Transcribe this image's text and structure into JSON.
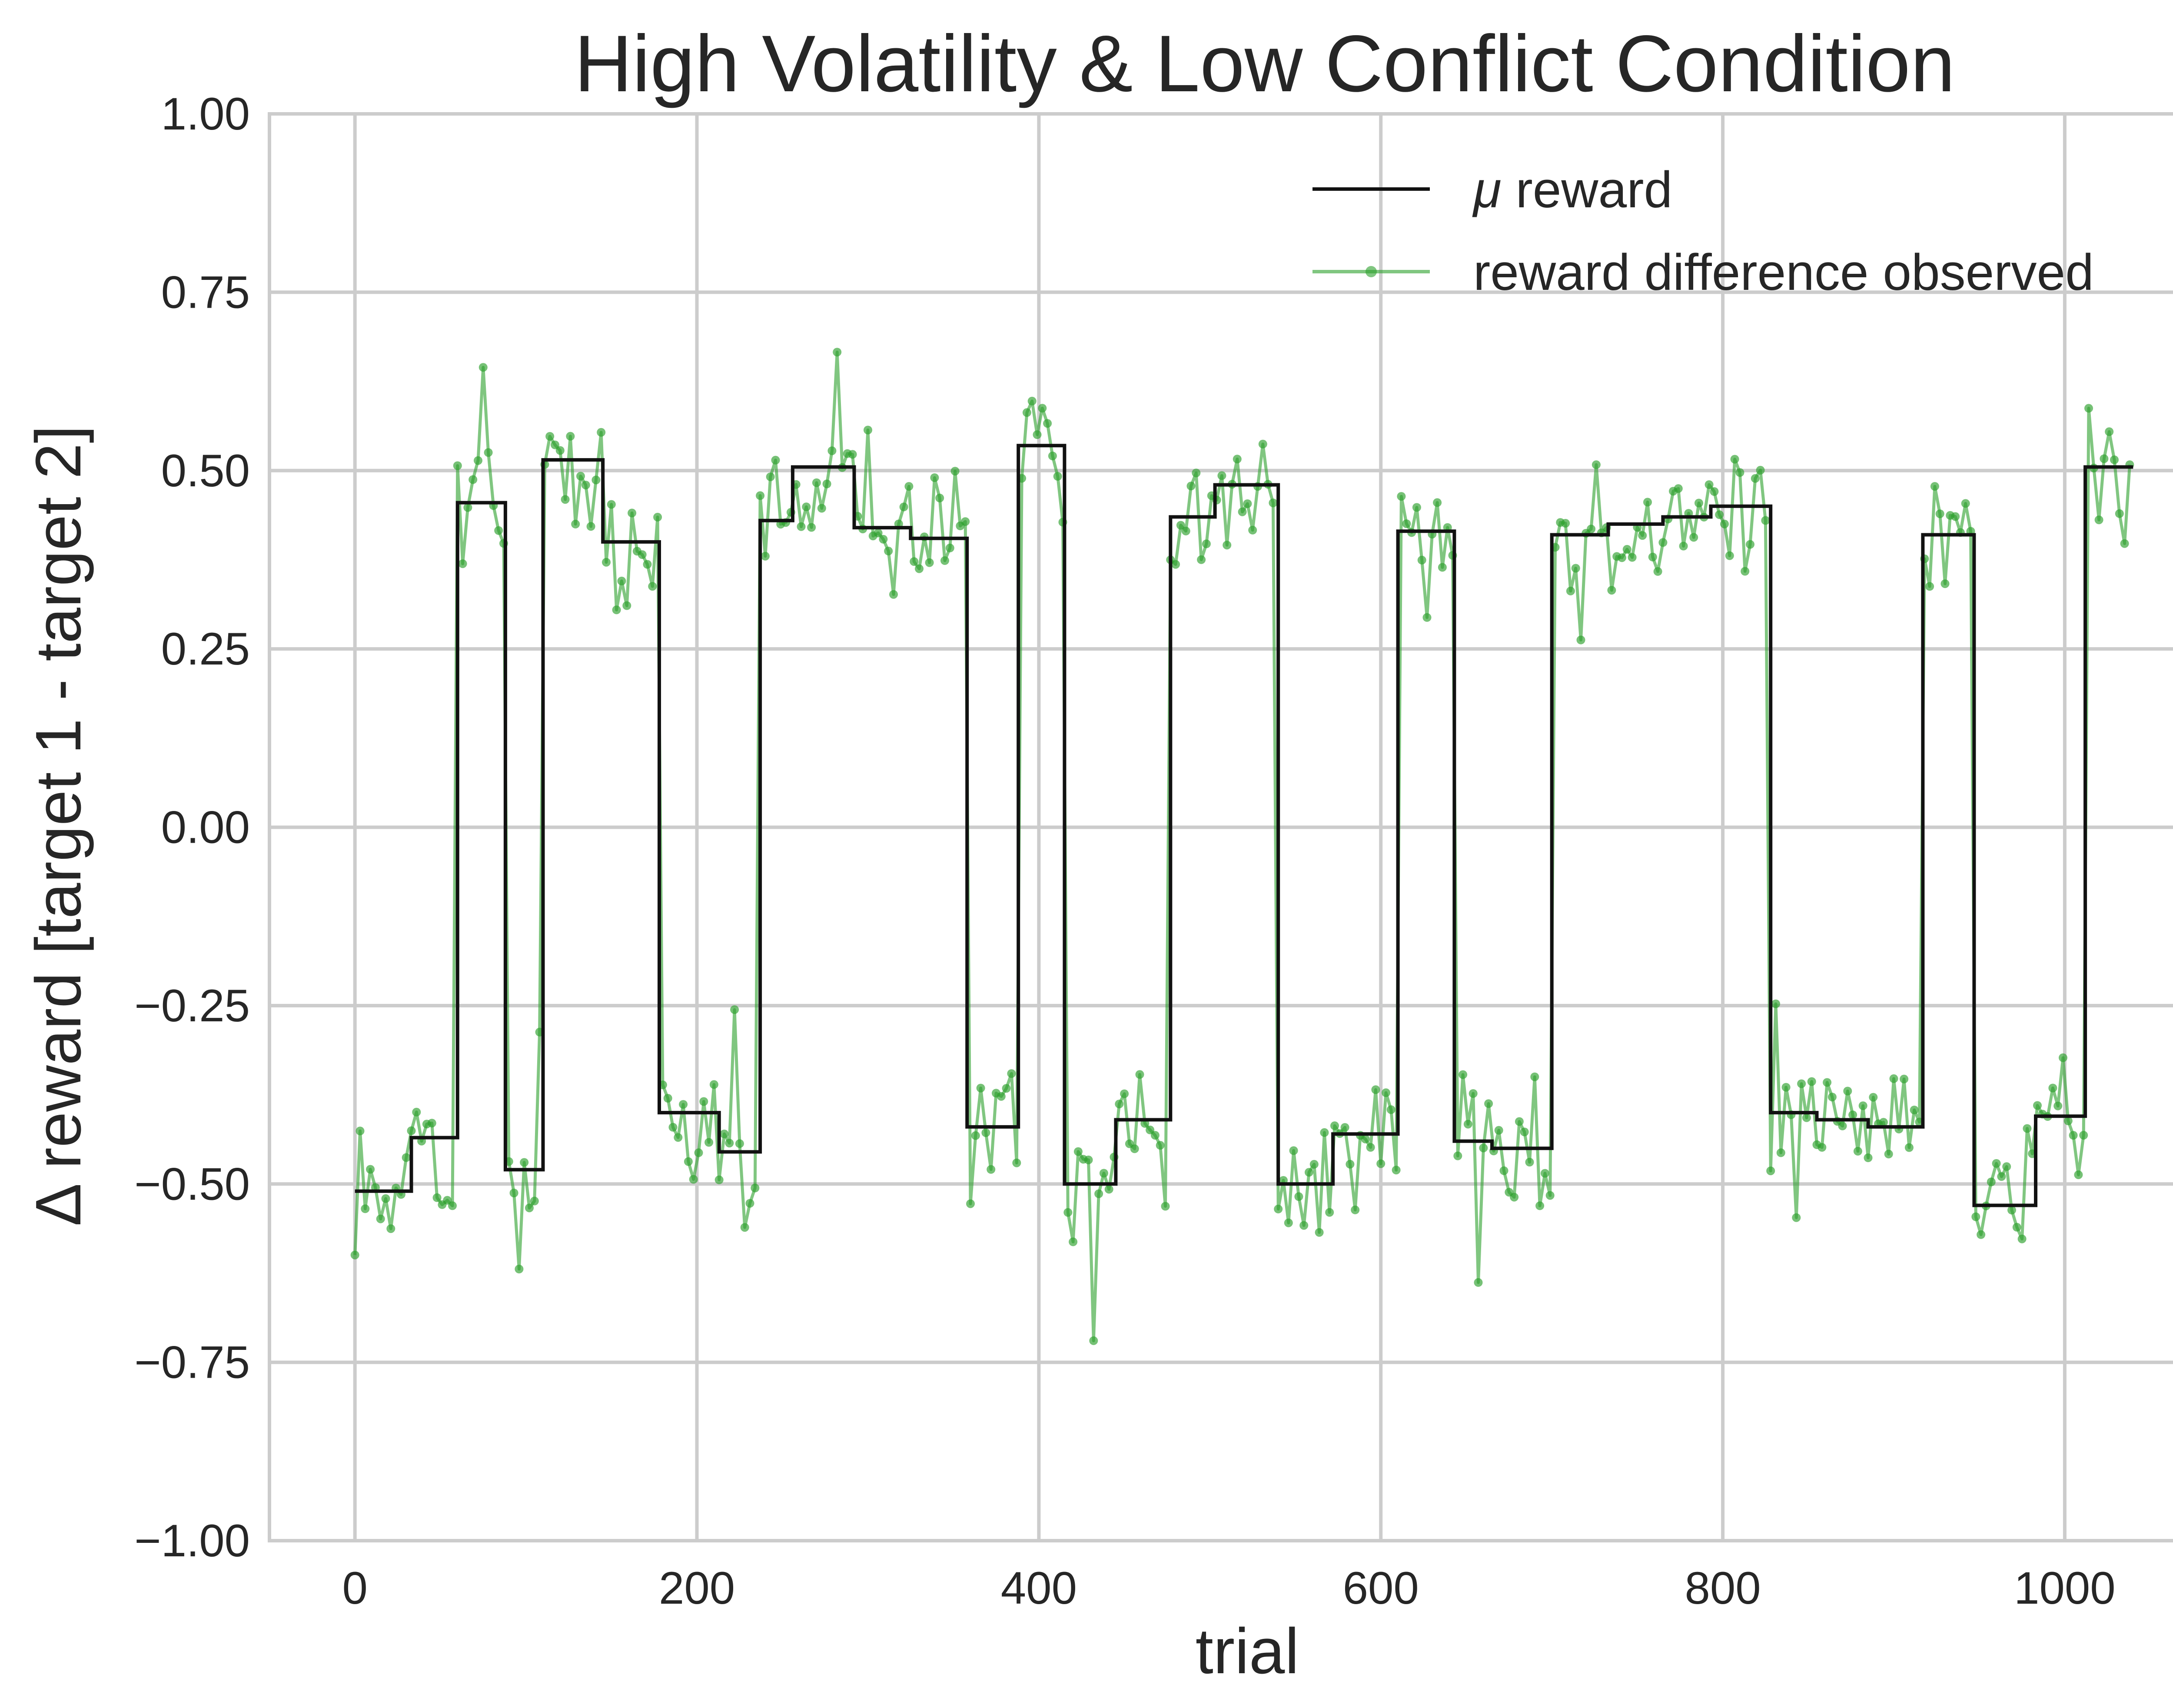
{
  "chart_data": {
    "type": "line",
    "title": "High Volatility & Low Conflict Condition",
    "xlabel": "trial",
    "ylabel": "Δ reward [target 1 - target 2]",
    "xlim": [
      -50,
      1090
    ],
    "ylim": [
      -1.0,
      1.0
    ],
    "xticks": [
      0,
      200,
      400,
      600,
      800,
      1000
    ],
    "xtick_labels": [
      "0",
      "200",
      "400",
      "600",
      "800",
      "1000"
    ],
    "yticks": [
      -1.0,
      -0.75,
      -0.5,
      -0.25,
      0.0,
      0.25,
      0.5,
      0.75,
      1.0
    ],
    "ytick_labels": [
      "−1.00",
      "−0.75",
      "−0.50",
      "−0.25",
      "0.00",
      "0.25",
      "0.50",
      "0.75",
      "1.00"
    ],
    "grid": true,
    "legend_position": "top-right",
    "series": [
      {
        "name": "μ reward",
        "label_prefix": "μ",
        "label_suffix": " reward",
        "color": "#111111",
        "style": "step",
        "segments": [
          {
            "x_start": 0,
            "x_end": 33,
            "y": -0.51
          },
          {
            "x_start": 33,
            "x_end": 60,
            "y": -0.435
          },
          {
            "x_start": 60,
            "x_end": 88,
            "y": 0.455
          },
          {
            "x_start": 88,
            "x_end": 110,
            "y": -0.48
          },
          {
            "x_start": 110,
            "x_end": 145,
            "y": 0.515
          },
          {
            "x_start": 145,
            "x_end": 178,
            "y": 0.4
          },
          {
            "x_start": 178,
            "x_end": 213,
            "y": -0.4
          },
          {
            "x_start": 213,
            "x_end": 237,
            "y": -0.455
          },
          {
            "x_start": 237,
            "x_end": 256,
            "y": 0.43
          },
          {
            "x_start": 256,
            "x_end": 292,
            "y": 0.505
          },
          {
            "x_start": 292,
            "x_end": 325,
            "y": 0.42
          },
          {
            "x_start": 325,
            "x_end": 358,
            "y": 0.405
          },
          {
            "x_start": 358,
            "x_end": 388,
            "y": -0.42
          },
          {
            "x_start": 388,
            "x_end": 415,
            "y": 0.535
          },
          {
            "x_start": 415,
            "x_end": 445,
            "y": -0.5
          },
          {
            "x_start": 445,
            "x_end": 477,
            "y": -0.41
          },
          {
            "x_start": 477,
            "x_end": 503,
            "y": 0.435
          },
          {
            "x_start": 503,
            "x_end": 540,
            "y": 0.48
          },
          {
            "x_start": 540,
            "x_end": 572,
            "y": -0.5
          },
          {
            "x_start": 572,
            "x_end": 610,
            "y": -0.43
          },
          {
            "x_start": 610,
            "x_end": 643,
            "y": 0.415
          },
          {
            "x_start": 643,
            "x_end": 665,
            "y": -0.44
          },
          {
            "x_start": 665,
            "x_end": 700,
            "y": -0.45
          },
          {
            "x_start": 700,
            "x_end": 733,
            "y": 0.41
          },
          {
            "x_start": 733,
            "x_end": 765,
            "y": 0.425
          },
          {
            "x_start": 765,
            "x_end": 793,
            "y": 0.435
          },
          {
            "x_start": 793,
            "x_end": 828,
            "y": 0.45
          },
          {
            "x_start": 828,
            "x_end": 855,
            "y": -0.4
          },
          {
            "x_start": 855,
            "x_end": 885,
            "y": -0.41
          },
          {
            "x_start": 885,
            "x_end": 917,
            "y": -0.42
          },
          {
            "x_start": 917,
            "x_end": 947,
            "y": 0.41
          },
          {
            "x_start": 947,
            "x_end": 983,
            "y": -0.53
          },
          {
            "x_start": 983,
            "x_end": 1012,
            "y": -0.405
          },
          {
            "x_start": 1012,
            "x_end": 1040,
            "y": 0.505
          }
        ]
      },
      {
        "name": "reward difference observed",
        "color": "#2ca02c",
        "style": "line-with-markers",
        "trial_step": 3,
        "noise_sd": 0.045
      }
    ]
  }
}
